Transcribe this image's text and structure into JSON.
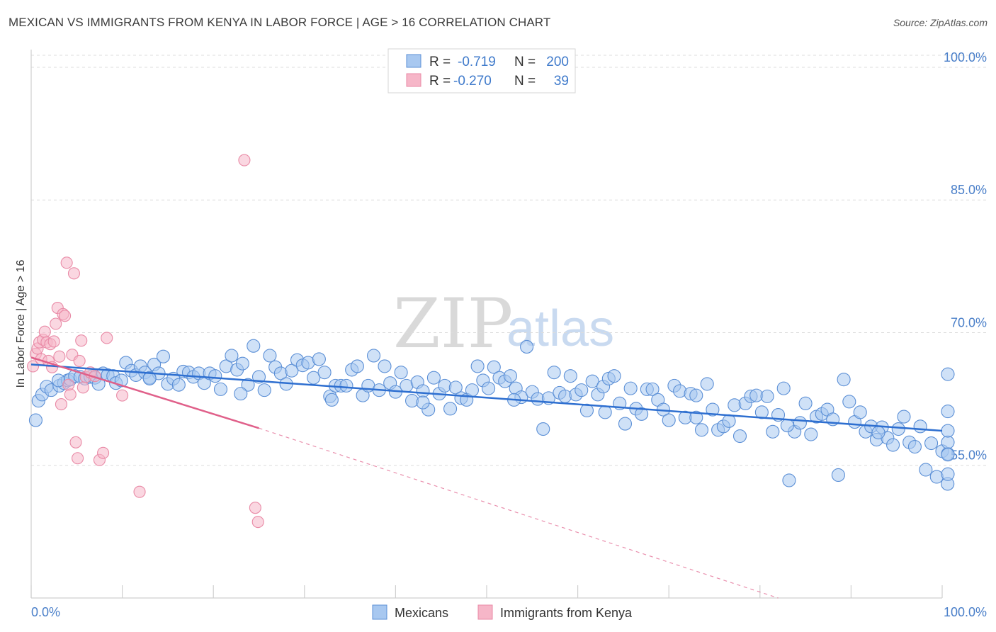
{
  "header": {
    "title": "MEXICAN VS IMMIGRANTS FROM KENYA IN LABOR FORCE | AGE > 16 CORRELATION CHART",
    "source": "Source: ZipAtlas.com"
  },
  "watermark": {
    "zip": "ZIP",
    "atlas": "atlas"
  },
  "legend": {
    "rows": [
      {
        "r_label": "R =",
        "r_value": "-0.719",
        "n_label": "N =",
        "n_value": "200"
      },
      {
        "r_label": "R =",
        "r_value": "-0.270",
        "n_label": "N =",
        "n_value": "39"
      }
    ],
    "bottom": [
      "Mexicans",
      "Immigrants from Kenya"
    ]
  },
  "colors": {
    "blue_fill": "#a8c8f0",
    "blue_stroke": "#5b8fd6",
    "blue_line": "#2e6fd0",
    "pink_fill": "#f6b6c8",
    "pink_stroke": "#e98aa6",
    "pink_line": "#e0608a",
    "grid": "#dcdcdc",
    "axis_label": "#4a7fc9"
  },
  "chart_data": {
    "type": "scatter",
    "title": "MEXICAN VS IMMIGRANTS FROM KENYA IN LABOR FORCE | AGE > 16 CORRELATION CHART",
    "xlabel": "",
    "ylabel": "In Labor Force | Age > 16",
    "xlim": [
      0,
      100
    ],
    "ylim": [
      40,
      102
    ],
    "x_tick_labels": [
      "0.0%",
      "100.0%"
    ],
    "y_ticks": [
      55,
      70,
      85,
      100
    ],
    "y_tick_labels": [
      "55.0%",
      "70.0%",
      "85.0%",
      "100.0%"
    ],
    "series": [
      {
        "name": "Mexicans",
        "color": "#5b8fd6",
        "trend": {
          "x": [
            0,
            100
          ],
          "y": [
            66.4,
            58.9
          ]
        },
        "points": [
          [
            0.5,
            60.1
          ],
          [
            0.8,
            62.3
          ],
          [
            1.2,
            63.0
          ],
          [
            1.7,
            63.9
          ],
          [
            2.2,
            63.5
          ],
          [
            3.1,
            64.0
          ],
          [
            3.6,
            64.3
          ],
          [
            4.0,
            64.6
          ],
          [
            4.3,
            64.7
          ],
          [
            4.8,
            65.1
          ],
          [
            5.4,
            65.0
          ],
          [
            5.9,
            64.8
          ],
          [
            6.5,
            65.0
          ],
          [
            7.0,
            64.9
          ],
          [
            7.4,
            64.2
          ],
          [
            7.9,
            65.4
          ],
          [
            8.4,
            65.2
          ],
          [
            9.0,
            65.1
          ],
          [
            9.3,
            64.3
          ],
          [
            9.9,
            64.6
          ],
          [
            10.4,
            66.6
          ],
          [
            11.0,
            65.7
          ],
          [
            11.5,
            65.2
          ],
          [
            12.0,
            66.2
          ],
          [
            12.5,
            65.5
          ],
          [
            13.0,
            64.9
          ],
          [
            13.5,
            66.4
          ],
          [
            14.0,
            65.4
          ],
          [
            14.5,
            67.3
          ],
          [
            15.0,
            64.2
          ],
          [
            15.6,
            64.8
          ],
          [
            16.2,
            64.1
          ],
          [
            16.7,
            65.6
          ],
          [
            17.3,
            65.5
          ],
          [
            17.8,
            65.0
          ],
          [
            18.4,
            65.4
          ],
          [
            19.0,
            64.3
          ],
          [
            19.6,
            65.4
          ],
          [
            20.2,
            65.1
          ],
          [
            20.8,
            63.6
          ],
          [
            21.4,
            66.2
          ],
          [
            22.0,
            67.4
          ],
          [
            22.6,
            65.8
          ],
          [
            23.2,
            66.5
          ],
          [
            23.8,
            64.1
          ],
          [
            24.4,
            68.5
          ],
          [
            25.0,
            65.0
          ],
          [
            25.6,
            63.5
          ],
          [
            26.2,
            67.4
          ],
          [
            26.8,
            66.1
          ],
          [
            27.4,
            65.4
          ],
          [
            28.0,
            64.2
          ],
          [
            28.6,
            65.7
          ],
          [
            29.2,
            66.9
          ],
          [
            29.8,
            66.3
          ],
          [
            30.4,
            66.6
          ],
          [
            31.0,
            64.9
          ],
          [
            31.6,
            67.0
          ],
          [
            32.2,
            65.5
          ],
          [
            32.8,
            62.8
          ],
          [
            33.4,
            64.0
          ],
          [
            34.0,
            64.0
          ],
          [
            34.6,
            64.0
          ],
          [
            35.2,
            65.8
          ],
          [
            35.8,
            66.2
          ],
          [
            36.4,
            62.9
          ],
          [
            37.0,
            64.0
          ],
          [
            37.6,
            67.4
          ],
          [
            38.2,
            63.5
          ],
          [
            38.8,
            66.2
          ],
          [
            39.4,
            64.3
          ],
          [
            40.0,
            63.3
          ],
          [
            40.6,
            65.5
          ],
          [
            41.2,
            64.0
          ],
          [
            41.8,
            62.3
          ],
          [
            42.4,
            64.4
          ],
          [
            43.0,
            63.4
          ],
          [
            43.6,
            61.3
          ],
          [
            44.2,
            64.9
          ],
          [
            44.8,
            63.1
          ],
          [
            45.4,
            64.0
          ],
          [
            46.0,
            61.4
          ],
          [
            46.6,
            63.8
          ],
          [
            47.2,
            62.6
          ],
          [
            47.8,
            62.4
          ],
          [
            48.4,
            63.5
          ],
          [
            49.0,
            66.2
          ],
          [
            49.6,
            64.6
          ],
          [
            50.2,
            63.7
          ],
          [
            50.8,
            66.1
          ],
          [
            51.4,
            64.9
          ],
          [
            52.0,
            64.5
          ],
          [
            52.6,
            65.1
          ],
          [
            53.2,
            63.7
          ],
          [
            53.8,
            62.7
          ],
          [
            54.4,
            68.4
          ],
          [
            55.0,
            63.3
          ],
          [
            55.6,
            62.5
          ],
          [
            56.2,
            59.1
          ],
          [
            56.8,
            62.6
          ],
          [
            57.4,
            65.5
          ],
          [
            58.0,
            63.2
          ],
          [
            58.6,
            62.8
          ],
          [
            59.2,
            65.1
          ],
          [
            59.8,
            63.0
          ],
          [
            60.4,
            63.5
          ],
          [
            61.0,
            61.2
          ],
          [
            61.6,
            64.5
          ],
          [
            62.2,
            63.0
          ],
          [
            62.8,
            63.9
          ],
          [
            63.4,
            64.8
          ],
          [
            64.0,
            65.1
          ],
          [
            64.6,
            62.0
          ],
          [
            65.2,
            59.7
          ],
          [
            65.8,
            63.7
          ],
          [
            66.4,
            61.4
          ],
          [
            67.0,
            60.8
          ],
          [
            67.6,
            63.6
          ],
          [
            68.2,
            63.6
          ],
          [
            68.8,
            62.4
          ],
          [
            69.4,
            61.3
          ],
          [
            70.0,
            60.1
          ],
          [
            70.6,
            64.0
          ],
          [
            71.2,
            63.4
          ],
          [
            71.8,
            60.4
          ],
          [
            72.4,
            63.1
          ],
          [
            73.0,
            62.9
          ],
          [
            73.6,
            59.0
          ],
          [
            74.2,
            64.2
          ],
          [
            74.8,
            61.3
          ],
          [
            75.4,
            59.0
          ],
          [
            76.0,
            59.4
          ],
          [
            76.6,
            60.0
          ],
          [
            77.2,
            61.8
          ],
          [
            77.8,
            58.3
          ],
          [
            78.4,
            62.0
          ],
          [
            79.0,
            62.8
          ],
          [
            79.6,
            62.9
          ],
          [
            80.2,
            61.0
          ],
          [
            80.8,
            62.8
          ],
          [
            81.4,
            58.8
          ],
          [
            82.0,
            60.7
          ],
          [
            82.6,
            63.7
          ],
          [
            83.2,
            53.3
          ],
          [
            83.8,
            58.8
          ],
          [
            84.4,
            59.8
          ],
          [
            85.0,
            62.0
          ],
          [
            85.6,
            58.5
          ],
          [
            86.2,
            60.5
          ],
          [
            86.8,
            60.8
          ],
          [
            87.4,
            61.3
          ],
          [
            88.0,
            60.2
          ],
          [
            88.6,
            53.9
          ],
          [
            89.2,
            64.7
          ],
          [
            89.8,
            62.2
          ],
          [
            90.4,
            59.9
          ],
          [
            91.0,
            61.0
          ],
          [
            91.6,
            58.8
          ],
          [
            92.2,
            59.4
          ],
          [
            92.8,
            57.9
          ],
          [
            93.4,
            59.3
          ],
          [
            94.0,
            58.1
          ],
          [
            94.6,
            57.3
          ],
          [
            95.2,
            59.1
          ],
          [
            95.8,
            60.5
          ],
          [
            96.4,
            57.6
          ],
          [
            97.0,
            57.1
          ],
          [
            97.6,
            59.4
          ],
          [
            98.2,
            54.5
          ],
          [
            98.8,
            57.5
          ],
          [
            99.4,
            53.7
          ],
          [
            100.0,
            56.6
          ],
          [
            100.6,
            52.9
          ],
          [
            101.2,
            56.3
          ],
          [
            101.8,
            57.6
          ],
          [
            102.4,
            56.2
          ],
          [
            103.0,
            65.3
          ],
          [
            103.6,
            61.1
          ],
          [
            104.2,
            54.0
          ],
          [
            104.8,
            58.9
          ],
          [
            53.0,
            62.4
          ],
          [
            43.0,
            62.1
          ],
          [
            33.0,
            62.4
          ],
          [
            23.0,
            63.1
          ],
          [
            13.0,
            64.8
          ],
          [
            3.0,
            64.6
          ],
          [
            63.0,
            61.0
          ],
          [
            73.0,
            60.4
          ],
          [
            83.0,
            59.5
          ],
          [
            93.0,
            58.7
          ]
        ]
      },
      {
        "name": "Immigrants from Kenya",
        "color": "#e98aa6",
        "trend": {
          "x": [
            0,
            25
          ],
          "y": [
            67.2,
            59.2
          ]
        },
        "trend_dashed": {
          "x": [
            25,
            82
          ],
          "y": [
            59.2,
            40.0
          ]
        },
        "points": [
          [
            0.2,
            66.2
          ],
          [
            0.5,
            67.6
          ],
          [
            0.7,
            68.2
          ],
          [
            0.9,
            68.9
          ],
          [
            1.1,
            67.0
          ],
          [
            1.3,
            69.2
          ],
          [
            1.5,
            70.1
          ],
          [
            1.7,
            68.9
          ],
          [
            1.9,
            66.8
          ],
          [
            2.1,
            68.7
          ],
          [
            2.3,
            66.1
          ],
          [
            2.5,
            69.0
          ],
          [
            2.7,
            71.0
          ],
          [
            2.9,
            72.8
          ],
          [
            3.1,
            67.3
          ],
          [
            3.3,
            61.9
          ],
          [
            3.5,
            72.1
          ],
          [
            3.7,
            71.9
          ],
          [
            3.9,
            77.9
          ],
          [
            4.1,
            64.1
          ],
          [
            4.3,
            63.0
          ],
          [
            4.5,
            67.5
          ],
          [
            4.7,
            76.7
          ],
          [
            4.9,
            57.6
          ],
          [
            5.1,
            55.8
          ],
          [
            5.3,
            66.8
          ],
          [
            5.5,
            69.1
          ],
          [
            5.7,
            63.8
          ],
          [
            6.0,
            65.0
          ],
          [
            6.5,
            65.5
          ],
          [
            7.0,
            65.1
          ],
          [
            7.5,
            55.6
          ],
          [
            7.9,
            56.4
          ],
          [
            8.3,
            69.4
          ],
          [
            11.9,
            52.0
          ],
          [
            23.4,
            89.5
          ],
          [
            24.6,
            50.2
          ],
          [
            24.9,
            48.6
          ],
          [
            10.0,
            62.9
          ]
        ]
      }
    ]
  }
}
